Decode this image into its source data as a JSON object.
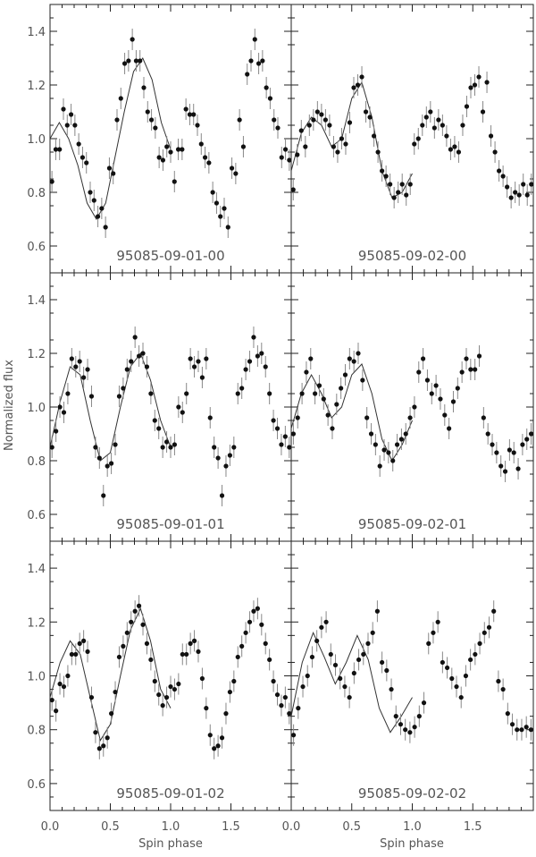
{
  "figure": {
    "ylabel": "Normalized flux",
    "xlabel": "Spin phase"
  },
  "axes": {
    "xlim": [
      0,
      2
    ],
    "ylim": [
      0.5,
      1.5
    ],
    "yticks": [
      0.6,
      0.8,
      1.0,
      1.2,
      1.4
    ],
    "yticklabels": [
      "0.6",
      "0.8",
      "1.0",
      "1.2",
      "1.4"
    ],
    "xticks": [
      0,
      0.5,
      1.0,
      1.5
    ],
    "xticklabels": [
      "0.0",
      "0.5",
      "1.0",
      "1.5"
    ],
    "grid": false,
    "layout": "3 rows x 2 columns, shared axes"
  },
  "chart_data": [
    {
      "type": "scatter",
      "label": "95085-09-01-00",
      "errorbars": true,
      "model_fit": true,
      "y": [
        0.84,
        0.96,
        0.96,
        1.11,
        1.05,
        1.09,
        1.05,
        0.98,
        0.93,
        0.91,
        0.8,
        0.77,
        0.71,
        0.74,
        0.67,
        0.89,
        0.87,
        1.07,
        1.15,
        1.28,
        1.29,
        1.37,
        1.29,
        1.29,
        1.19,
        1.1,
        1.07,
        1.04,
        0.93,
        0.92,
        0.97,
        0.95,
        0.84,
        0.96,
        0.96,
        1.11,
        1.09,
        1.09,
        1.05,
        0.98,
        0.93,
        0.91,
        0.8,
        0.76,
        0.71,
        0.74,
        0.67,
        0.89,
        0.87,
        1.07,
        0.97,
        1.24,
        1.29,
        1.37,
        1.28,
        1.29,
        1.19,
        1.15,
        1.07,
        1.04,
        0.93,
        0.96,
        0.92
      ],
      "fit": [
        1.0,
        1.06,
        1.0,
        0.9,
        0.76,
        0.7,
        0.76,
        0.93,
        1.1,
        1.25,
        1.3,
        1.22,
        1.06,
        0.96
      ]
    },
    {
      "type": "scatter",
      "label": "95085-09-02-00",
      "errorbars": true,
      "model_fit": true,
      "y": [
        0.81,
        0.94,
        1.03,
        0.97,
        1.05,
        1.07,
        1.1,
        1.09,
        1.07,
        1.05,
        0.97,
        0.95,
        1.0,
        0.98,
        1.06,
        1.19,
        1.2,
        1.23,
        1.1,
        1.08,
        1.01,
        0.95,
        0.88,
        0.86,
        0.83,
        0.78,
        0.8,
        0.83,
        0.79,
        0.83,
        0.98,
        1.0,
        1.05,
        1.08,
        1.1,
        1.04,
        1.07,
        1.05,
        1.01,
        0.96,
        0.97,
        0.95,
        1.05,
        1.12,
        1.19,
        1.2,
        1.23,
        1.1,
        1.21,
        1.01,
        0.95,
        0.88,
        0.86,
        0.82,
        0.78,
        0.8,
        0.79,
        0.83,
        0.79,
        0.83
      ],
      "fit": [
        0.88,
        1.02,
        1.08,
        1.05,
        0.97,
        1.0,
        1.15,
        1.21,
        1.08,
        0.88,
        0.78,
        0.8,
        0.87
      ]
    },
    {
      "type": "scatter",
      "label": "95085-09-01-01",
      "errorbars": true,
      "model_fit": true,
      "y": [
        0.85,
        0.91,
        1.0,
        0.98,
        1.05,
        1.18,
        1.15,
        1.17,
        1.11,
        1.14,
        1.04,
        0.85,
        0.81,
        0.67,
        0.78,
        0.79,
        0.86,
        1.04,
        1.07,
        1.14,
        1.17,
        1.26,
        1.19,
        1.2,
        1.15,
        1.05,
        0.95,
        0.92,
        0.85,
        0.87,
        0.85,
        0.86,
        1.0,
        0.98,
        1.05,
        1.18,
        1.15,
        1.17,
        1.11,
        1.18,
        0.96,
        0.85,
        0.81,
        0.67,
        0.78,
        0.82,
        0.85,
        1.05,
        1.07,
        1.14,
        1.17,
        1.26,
        1.19,
        1.2,
        1.15,
        1.05,
        0.95,
        0.92,
        0.86,
        0.89,
        0.85
      ],
      "fit": [
        0.85,
        1.02,
        1.15,
        1.12,
        0.95,
        0.8,
        0.83,
        1.0,
        1.15,
        1.2,
        1.1,
        0.95,
        0.85
      ]
    },
    {
      "type": "scatter",
      "label": "95085-09-02-01",
      "errorbars": true,
      "model_fit": true,
      "y": [
        0.9,
        0.96,
        1.05,
        1.13,
        1.18,
        1.05,
        1.08,
        1.03,
        0.97,
        0.92,
        1.01,
        1.07,
        1.12,
        1.18,
        1.17,
        1.2,
        1.1,
        0.96,
        0.9,
        0.86,
        0.78,
        0.84,
        0.83,
        0.8,
        0.86,
        0.88,
        0.9,
        0.96,
        1.0,
        1.13,
        1.18,
        1.1,
        1.05,
        1.08,
        1.03,
        0.97,
        0.92,
        1.02,
        1.07,
        1.13,
        1.18,
        1.14,
        1.14,
        1.19,
        0.96,
        0.9,
        0.86,
        0.83,
        0.78,
        0.76,
        0.84,
        0.83,
        0.77,
        0.86,
        0.88,
        0.9
      ],
      "fit": [
        0.92,
        1.05,
        1.12,
        1.05,
        0.96,
        1.0,
        1.12,
        1.16,
        1.05,
        0.88,
        0.8,
        0.86,
        0.95
      ]
    },
    {
      "type": "scatter",
      "label": "95085-09-01-02",
      "errorbars": true,
      "model_fit": true,
      "y": [
        0.91,
        0.87,
        0.97,
        0.96,
        1.0,
        1.08,
        1.08,
        1.12,
        1.13,
        1.09,
        0.92,
        0.79,
        0.73,
        0.74,
        0.77,
        0.86,
        0.94,
        1.07,
        1.11,
        1.16,
        1.2,
        1.24,
        1.26,
        1.19,
        1.12,
        1.06,
        0.98,
        0.93,
        0.89,
        0.92,
        0.96,
        0.95,
        0.97,
        1.08,
        1.08,
        1.12,
        1.13,
        1.09,
        0.99,
        0.88,
        0.78,
        0.73,
        0.74,
        0.77,
        0.86,
        0.94,
        0.98,
        1.07,
        1.11,
        1.16,
        1.2,
        1.24,
        1.25,
        1.19,
        1.12,
        1.06,
        0.98,
        0.93,
        0.89,
        0.92,
        0.86
      ],
      "fit": [
        0.92,
        1.05,
        1.13,
        1.08,
        0.92,
        0.76,
        0.82,
        1.0,
        1.17,
        1.25,
        1.13,
        0.95,
        0.88
      ]
    },
    {
      "type": "scatter",
      "label": "95085-09-02-02",
      "errorbars": true,
      "model_fit": true,
      "y": [
        0.78,
        0.88,
        0.96,
        1.0,
        1.07,
        1.13,
        1.18,
        1.2,
        1.08,
        1.04,
        0.99,
        0.96,
        0.92,
        1.01,
        1.06,
        1.08,
        1.12,
        1.16,
        1.24,
        1.05,
        1.02,
        0.95,
        0.85,
        0.82,
        0.8,
        0.79,
        0.81,
        0.85,
        0.9,
        1.12,
        1.16,
        1.2,
        1.05,
        1.03,
        0.99,
        0.96,
        0.92,
        1.0,
        1.06,
        1.08,
        1.12,
        1.16,
        1.18,
        1.24,
        0.98,
        0.95,
        0.86,
        0.82,
        0.8,
        0.8,
        0.81,
        0.8
      ],
      "fit": [
        0.85,
        1.05,
        1.16,
        1.07,
        0.97,
        1.05,
        1.15,
        1.06,
        0.88,
        0.79,
        0.85,
        0.92
      ]
    }
  ]
}
